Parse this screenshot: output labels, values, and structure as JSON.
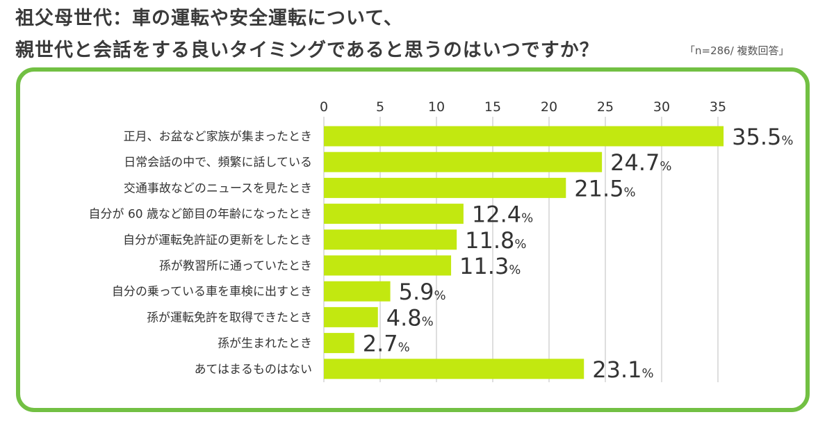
{
  "title": {
    "line1": "祖父母世代：車の運転や安全運転について、",
    "line2": "親世代と会話をする良いタイミングであると思うのはいつですか？"
  },
  "note": "「n=286/ 複数回答」",
  "colors": {
    "bar": "#c2e810",
    "frame": "#72c043",
    "grid": "#d4d4d4",
    "text": "#333333"
  },
  "chart_data": {
    "type": "bar",
    "orientation": "horizontal",
    "title": "祖父母世代：車の運転や安全運転について、親世代と会話をする良いタイミングであると思うのはいつですか？",
    "categories": [
      "正月、お盆など家族が集まったとき",
      "日常会話の中で、頻繁に話している",
      "交通事故などのニュースを見たとき",
      "自分が 60 歳など節目の年齢になったとき",
      "自分が運転免許証の更新をしたとき",
      "孫が教習所に通っていたとき",
      "自分の乗っている車を車検に出すとき",
      "孫が運転免許を取得できたとき",
      "孫が生まれたとき",
      "あてはまるものはない"
    ],
    "values": [
      35.5,
      24.7,
      21.5,
      12.4,
      11.8,
      11.3,
      5.9,
      4.8,
      2.7,
      23.1
    ],
    "value_labels": [
      "35.5",
      "24.7",
      "21.5",
      "12.4",
      "11.8",
      "11.3",
      "5.9",
      "4.8",
      "2.7",
      "23.1"
    ],
    "value_unit": "%",
    "xticks": [
      "0",
      "5",
      "10",
      "15",
      "20",
      "25",
      "30",
      "35"
    ],
    "xlim": [
      0,
      35
    ],
    "grid": true,
    "legend": "none"
  }
}
